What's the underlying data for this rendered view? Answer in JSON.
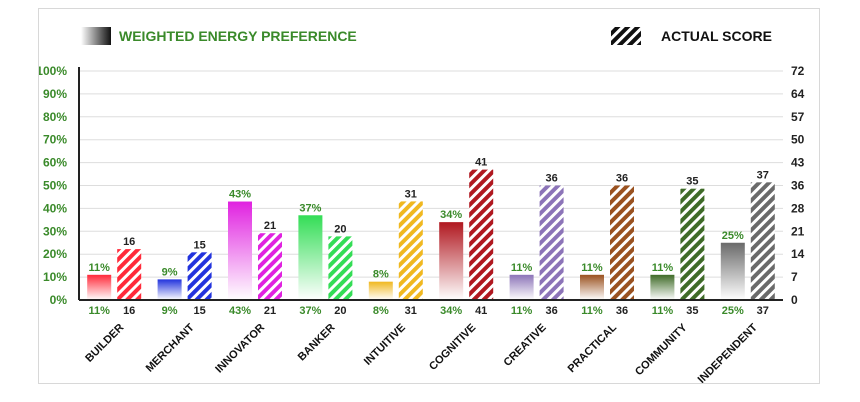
{
  "legend": {
    "weighted_label": "WEIGHTED ENERGY PREFERENCE",
    "actual_label": "ACTUAL SCORE",
    "placement": "top"
  },
  "chart_data": {
    "type": "bar",
    "title": "",
    "xlabel": "",
    "ylabel": "",
    "categories": [
      "BUILDER",
      "MERCHANT",
      "INNOVATOR",
      "BANKER",
      "INTUITIVE",
      "COGNITIVE",
      "CREATIVE",
      "PRACTICAL",
      "COMMUNITY",
      "INDEPENDENT"
    ],
    "colors": [
      "#ff2a3a",
      "#2233dd",
      "#e022e0",
      "#33dd55",
      "#f0b820",
      "#b01820",
      "#8c74b8",
      "#9a5220",
      "#3f6b28",
      "#6a6a6a"
    ],
    "series": [
      {
        "name": "WEIGHTED ENERGY PREFERENCE",
        "axis": "left",
        "unit": "%",
        "values": [
          11,
          9,
          43,
          37,
          8,
          34,
          11,
          11,
          11,
          25
        ]
      },
      {
        "name": "ACTUAL SCORE",
        "axis": "right",
        "values": [
          16,
          15,
          21,
          20,
          31,
          41,
          36,
          36,
          35,
          37
        ]
      }
    ],
    "y_left": {
      "ticks": [
        "0%",
        "10%",
        "20%",
        "30%",
        "40%",
        "50%",
        "60%",
        "70%",
        "80%",
        "90%",
        "100%"
      ],
      "ylim": [
        0,
        100
      ]
    },
    "y_right": {
      "ticks": [
        "0",
        "7",
        "14",
        "21",
        "28",
        "36",
        "43",
        "50",
        "57",
        "64",
        "72"
      ],
      "ylim": [
        0,
        72
      ]
    },
    "grid": true
  }
}
